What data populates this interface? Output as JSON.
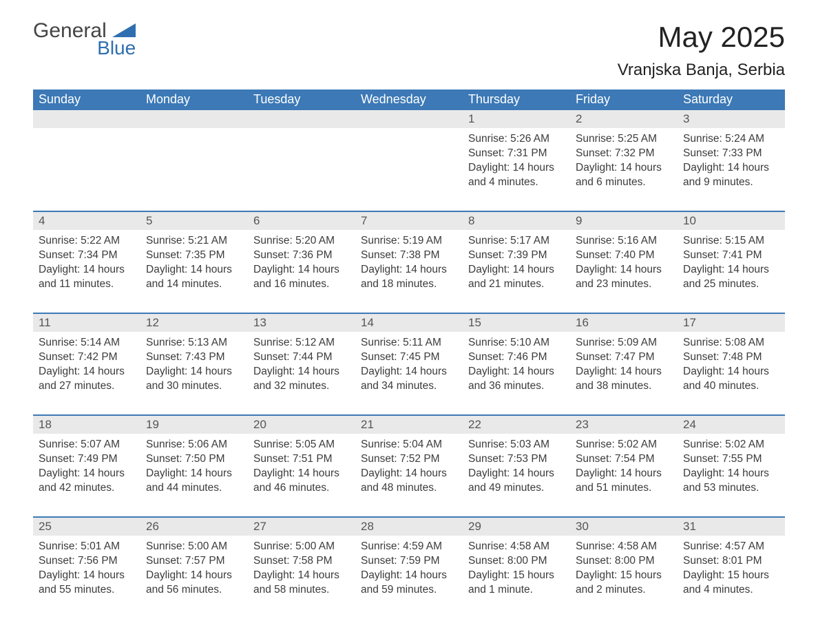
{
  "brand": {
    "word1": "General",
    "word2": "Blue"
  },
  "title": "May 2025",
  "location": "Vranjska Banja, Serbia",
  "colors": {
    "header_bg": "#3c79b6",
    "header_text": "#ffffff",
    "daynum_bg": "#e9e9e9",
    "daynum_text": "#555555",
    "body_text": "#3b3b3b",
    "rule": "#3c79b6",
    "logo_blue": "#2f6fb0",
    "page_bg": "#ffffff"
  },
  "fonts": {
    "family": "Arial",
    "title_size_pt": 32,
    "location_size_pt": 18,
    "weekday_size_pt": 14,
    "body_size_pt": 12
  },
  "weekdays": [
    "Sunday",
    "Monday",
    "Tuesday",
    "Wednesday",
    "Thursday",
    "Friday",
    "Saturday"
  ],
  "calendar": {
    "type": "table",
    "columns": 7,
    "first_weekday_index": 4,
    "days": [
      {
        "n": 1,
        "sunrise": "5:26 AM",
        "sunset": "7:31 PM",
        "daylight": "14 hours and 4 minutes."
      },
      {
        "n": 2,
        "sunrise": "5:25 AM",
        "sunset": "7:32 PM",
        "daylight": "14 hours and 6 minutes."
      },
      {
        "n": 3,
        "sunrise": "5:24 AM",
        "sunset": "7:33 PM",
        "daylight": "14 hours and 9 minutes."
      },
      {
        "n": 4,
        "sunrise": "5:22 AM",
        "sunset": "7:34 PM",
        "daylight": "14 hours and 11 minutes."
      },
      {
        "n": 5,
        "sunrise": "5:21 AM",
        "sunset": "7:35 PM",
        "daylight": "14 hours and 14 minutes."
      },
      {
        "n": 6,
        "sunrise": "5:20 AM",
        "sunset": "7:36 PM",
        "daylight": "14 hours and 16 minutes."
      },
      {
        "n": 7,
        "sunrise": "5:19 AM",
        "sunset": "7:38 PM",
        "daylight": "14 hours and 18 minutes."
      },
      {
        "n": 8,
        "sunrise": "5:17 AM",
        "sunset": "7:39 PM",
        "daylight": "14 hours and 21 minutes."
      },
      {
        "n": 9,
        "sunrise": "5:16 AM",
        "sunset": "7:40 PM",
        "daylight": "14 hours and 23 minutes."
      },
      {
        "n": 10,
        "sunrise": "5:15 AM",
        "sunset": "7:41 PM",
        "daylight": "14 hours and 25 minutes."
      },
      {
        "n": 11,
        "sunrise": "5:14 AM",
        "sunset": "7:42 PM",
        "daylight": "14 hours and 27 minutes."
      },
      {
        "n": 12,
        "sunrise": "5:13 AM",
        "sunset": "7:43 PM",
        "daylight": "14 hours and 30 minutes."
      },
      {
        "n": 13,
        "sunrise": "5:12 AM",
        "sunset": "7:44 PM",
        "daylight": "14 hours and 32 minutes."
      },
      {
        "n": 14,
        "sunrise": "5:11 AM",
        "sunset": "7:45 PM",
        "daylight": "14 hours and 34 minutes."
      },
      {
        "n": 15,
        "sunrise": "5:10 AM",
        "sunset": "7:46 PM",
        "daylight": "14 hours and 36 minutes."
      },
      {
        "n": 16,
        "sunrise": "5:09 AM",
        "sunset": "7:47 PM",
        "daylight": "14 hours and 38 minutes."
      },
      {
        "n": 17,
        "sunrise": "5:08 AM",
        "sunset": "7:48 PM",
        "daylight": "14 hours and 40 minutes."
      },
      {
        "n": 18,
        "sunrise": "5:07 AM",
        "sunset": "7:49 PM",
        "daylight": "14 hours and 42 minutes."
      },
      {
        "n": 19,
        "sunrise": "5:06 AM",
        "sunset": "7:50 PM",
        "daylight": "14 hours and 44 minutes."
      },
      {
        "n": 20,
        "sunrise": "5:05 AM",
        "sunset": "7:51 PM",
        "daylight": "14 hours and 46 minutes."
      },
      {
        "n": 21,
        "sunrise": "5:04 AM",
        "sunset": "7:52 PM",
        "daylight": "14 hours and 48 minutes."
      },
      {
        "n": 22,
        "sunrise": "5:03 AM",
        "sunset": "7:53 PM",
        "daylight": "14 hours and 49 minutes."
      },
      {
        "n": 23,
        "sunrise": "5:02 AM",
        "sunset": "7:54 PM",
        "daylight": "14 hours and 51 minutes."
      },
      {
        "n": 24,
        "sunrise": "5:02 AM",
        "sunset": "7:55 PM",
        "daylight": "14 hours and 53 minutes."
      },
      {
        "n": 25,
        "sunrise": "5:01 AM",
        "sunset": "7:56 PM",
        "daylight": "14 hours and 55 minutes."
      },
      {
        "n": 26,
        "sunrise": "5:00 AM",
        "sunset": "7:57 PM",
        "daylight": "14 hours and 56 minutes."
      },
      {
        "n": 27,
        "sunrise": "5:00 AM",
        "sunset": "7:58 PM",
        "daylight": "14 hours and 58 minutes."
      },
      {
        "n": 28,
        "sunrise": "4:59 AM",
        "sunset": "7:59 PM",
        "daylight": "14 hours and 59 minutes."
      },
      {
        "n": 29,
        "sunrise": "4:58 AM",
        "sunset": "8:00 PM",
        "daylight": "15 hours and 1 minute."
      },
      {
        "n": 30,
        "sunrise": "4:58 AM",
        "sunset": "8:00 PM",
        "daylight": "15 hours and 2 minutes."
      },
      {
        "n": 31,
        "sunrise": "4:57 AM",
        "sunset": "8:01 PM",
        "daylight": "15 hours and 4 minutes."
      }
    ],
    "labels": {
      "sunrise": "Sunrise: ",
      "sunset": "Sunset: ",
      "daylight": "Daylight: "
    }
  }
}
